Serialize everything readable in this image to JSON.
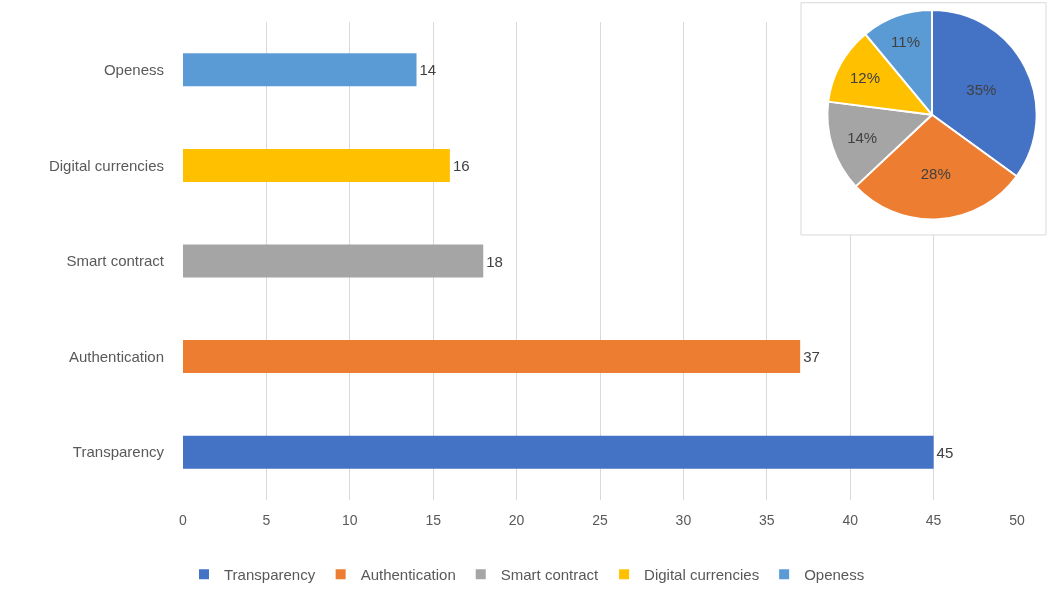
{
  "chart_data": [
    {
      "type": "bar",
      "orientation": "horizontal",
      "categories": [
        "Openess",
        "Digital currencies",
        "Smart contract",
        "Authentication",
        "Transparency"
      ],
      "values": [
        14,
        16,
        18,
        37,
        45
      ],
      "colors": [
        "#5b9bd5",
        "#ffc000",
        "#a5a5a5",
        "#ed7d31",
        "#4472c4"
      ],
      "xlim": [
        0,
        50
      ],
      "xticks": [
        0,
        5,
        10,
        15,
        20,
        25,
        30,
        35,
        40,
        45,
        50
      ],
      "grid": "x",
      "data_labels": true
    },
    {
      "type": "pie",
      "categories": [
        "Transparency",
        "Authentication",
        "Smart contract",
        "Digital currencies",
        "Openess"
      ],
      "values": [
        35,
        28,
        14,
        12,
        11
      ],
      "colors": [
        "#4472c4",
        "#ed7d31",
        "#a5a5a5",
        "#ffc000",
        "#5b9bd5"
      ],
      "value_labels": [
        "35%",
        "28%",
        "14%",
        "12%",
        "11%"
      ],
      "legend": "bottom"
    }
  ]
}
